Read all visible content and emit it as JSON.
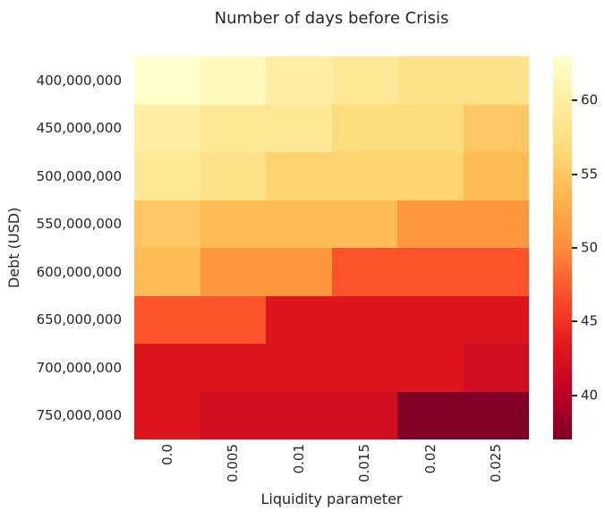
{
  "chart_data": {
    "type": "heatmap",
    "title": "Number of days before Crisis",
    "xlabel": "Liquidity parameter",
    "ylabel": "Debt (USD)",
    "x_categories": [
      "0.0",
      "0.005",
      "0.01",
      "0.015",
      "0.02",
      "0.025"
    ],
    "y_categories": [
      "400,000,000",
      "450,000,000",
      "500,000,000",
      "550,000,000",
      "600,000,000",
      "650,000,000",
      "700,000,000",
      "750,000,000"
    ],
    "values": [
      [
        63,
        62,
        60,
        59,
        58,
        58
      ],
      [
        60,
        59,
        59,
        57,
        57,
        55
      ],
      [
        59,
        58,
        56,
        56,
        56,
        54
      ],
      [
        55,
        54,
        54,
        54,
        51,
        51
      ],
      [
        54,
        51,
        51,
        47,
        47,
        47
      ],
      [
        47,
        47,
        43,
        43,
        43,
        43
      ],
      [
        43,
        43,
        43,
        43,
        43,
        42
      ],
      [
        43,
        42,
        42,
        42,
        37,
        37
      ]
    ],
    "vmin": 37,
    "vmax": 63,
    "colormap": {
      "name": "YlOrRd_r",
      "note": "high values = light yellow, low values = dark red",
      "colors_light_to_dark": [
        "#ffffcc",
        "#ffeda0",
        "#fed976",
        "#feb24c",
        "#fd8d3c",
        "#fc4e2a",
        "#e31a1c",
        "#bd0026",
        "#800026"
      ]
    },
    "colorbar": {
      "ticks": [
        60,
        55,
        50,
        45,
        40
      ],
      "position": "right"
    },
    "grid": false,
    "legend": false,
    "text_color": "#262626",
    "background": "#ffffff"
  }
}
